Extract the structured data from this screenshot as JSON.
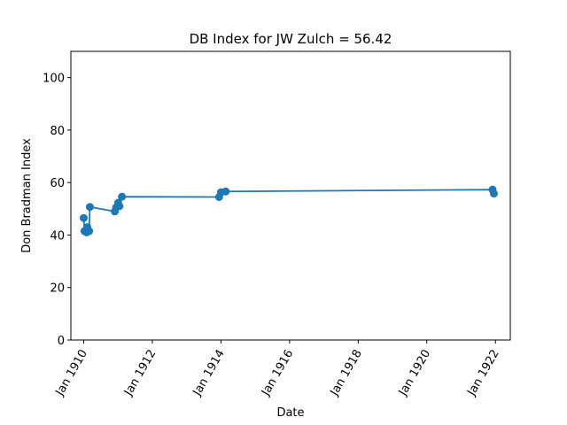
{
  "chart_data": {
    "type": "line",
    "title": "DB Index for JW Zulch = 56.42",
    "xlabel": "Date",
    "ylabel": "Don Bradman Index",
    "ylim": [
      0,
      110
    ],
    "xlim": [
      "1909-08-17",
      "1922-06-08"
    ],
    "x_ticks": [
      "1910-01-01",
      "1912-01-01",
      "1914-01-01",
      "1916-01-01",
      "1918-01-01",
      "1920-01-01",
      "1922-01-01"
    ],
    "x_tick_labels": [
      "Jan 1910",
      "Jan 1912",
      "Jan 1914",
      "Jan 1916",
      "Jan 1918",
      "Jan 1920",
      "Jan 1922"
    ],
    "y_ticks": [
      0,
      20,
      40,
      60,
      80,
      100
    ],
    "y_tick_labels": [
      "0",
      "20",
      "40",
      "60",
      "80",
      "100"
    ],
    "grid": false,
    "series": [
      {
        "color": "#1f77b4",
        "marker": "circle",
        "x": [
          "1910-01-01",
          "1910-01-09",
          "1910-02-01",
          "1910-02-08",
          "1910-02-28",
          "1910-03-07",
          "1910-11-28",
          "1910-12-12",
          "1911-01-02",
          "1911-01-16",
          "1911-02-12",
          "1913-12-12",
          "1914-01-01",
          "1914-02-20",
          "1921-12-01",
          "1921-12-15"
        ],
        "values": [
          46.5,
          41.5,
          41.0,
          43.0,
          41.5,
          50.7,
          49.0,
          50.5,
          52.3,
          51.0,
          54.6,
          54.5,
          56.3,
          56.6,
          57.3,
          55.8
        ]
      }
    ]
  }
}
